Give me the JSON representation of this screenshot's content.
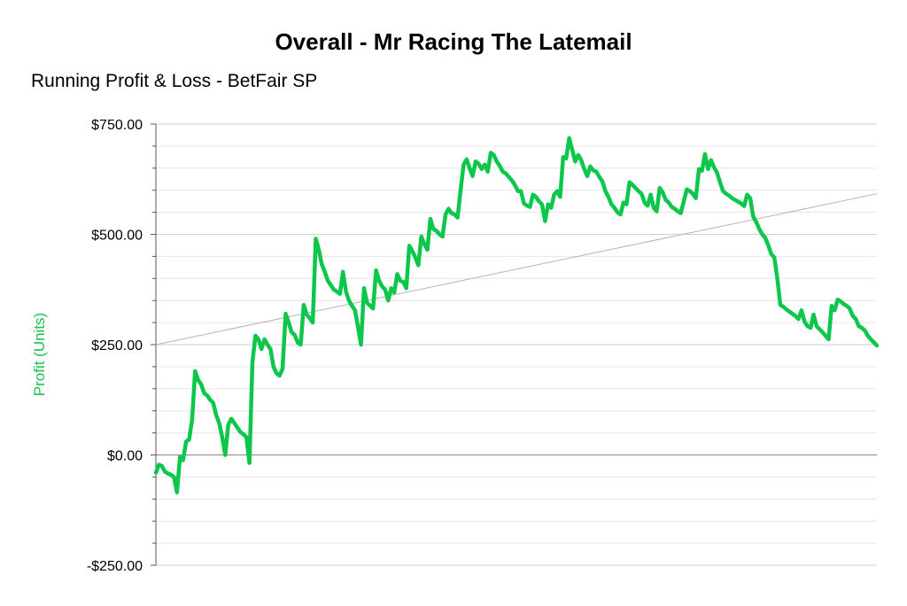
{
  "chart_data": {
    "type": "line",
    "title": "Overall - Mr Racing The Latemail",
    "subtitle": "Running Profit & Loss - BetFair SP",
    "ylabel": "Profit (Units)",
    "xlabel": "",
    "ylim": [
      -250,
      750
    ],
    "ytick_values": [
      -250,
      0,
      250,
      500,
      750
    ],
    "yticks": [
      "-$250.00",
      "$0.00",
      "$250.00",
      "$500.00",
      "$750.00"
    ],
    "grid": true,
    "colors": {
      "series": "#0dc74c",
      "ylabel": "#19c24b",
      "trend": "#b4b4b4",
      "grid": "#dcdcdc",
      "zero": "#888888"
    },
    "trendline": {
      "start": 250,
      "end": 592
    },
    "series": [
      {
        "values": [
          -40,
          -22,
          -25,
          -38,
          -42,
          -45,
          -50,
          -85,
          -5,
          -12,
          30,
          35,
          80,
          190,
          170,
          160,
          140,
          135,
          125,
          118,
          90,
          72,
          40,
          0,
          68,
          82,
          72,
          62,
          52,
          47,
          40,
          -18,
          210,
          270,
          262,
          240,
          262,
          250,
          240,
          200,
          185,
          180,
          195,
          320,
          300,
          278,
          272,
          255,
          250,
          340,
          318,
          310,
          300,
          490,
          465,
          432,
          415,
          395,
          385,
          375,
          370,
          365,
          415,
          370,
          350,
          338,
          328,
          290,
          250,
          378,
          345,
          338,
          332,
          418,
          395,
          382,
          375,
          350,
          378,
          368,
          410,
          395,
          392,
          378,
          474,
          462,
          448,
          430,
          495,
          478,
          465,
          535,
          512,
          508,
          500,
          495,
          545,
          558,
          548,
          545,
          538,
          600,
          658,
          670,
          650,
          632,
          665,
          660,
          648,
          658,
          642,
          685,
          680,
          665,
          655,
          642,
          638,
          630,
          622,
          612,
          598,
          598,
          570,
          565,
          562,
          590,
          585,
          575,
          568,
          530,
          568,
          560,
          590,
          598,
          585,
          675,
          672,
          718,
          692,
          665,
          680,
          668,
          648,
          632,
          654,
          645,
          642,
          630,
          620,
          598,
          585,
          568,
          560,
          550,
          545,
          572,
          568,
          618,
          612,
          605,
          598,
          592,
          572,
          565,
          590,
          560,
          552,
          605,
          595,
          578,
          572,
          562,
          558,
          552,
          548,
          575,
          602,
          598,
          592,
          582,
          648,
          644,
          682,
          648,
          668,
          652,
          640,
          618,
          598,
          592,
          588,
          582,
          578,
          574,
          570,
          564,
          590,
          582,
          540,
          528,
          512,
          500,
          492,
          475,
          455,
          448,
          400,
          340,
          336,
          330,
          325,
          320,
          315,
          308,
          328,
          302,
          292,
          288,
          318,
          292,
          285,
          278,
          270,
          262,
          338,
          328,
          352,
          348,
          342,
          338,
          332,
          315,
          308,
          292,
          288,
          282,
          270,
          262,
          255,
          248
        ]
      }
    ]
  }
}
